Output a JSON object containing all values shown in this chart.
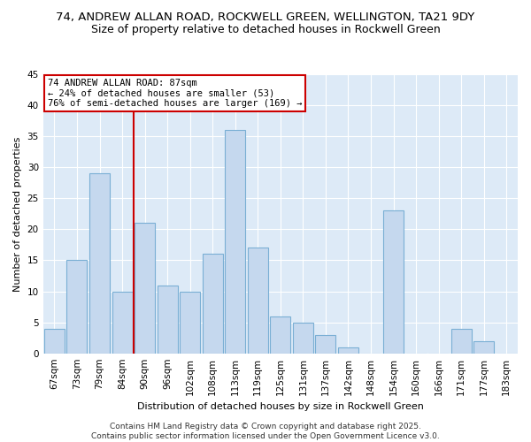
{
  "title1": "74, ANDREW ALLAN ROAD, ROCKWELL GREEN, WELLINGTON, TA21 9DY",
  "title2": "Size of property relative to detached houses in Rockwell Green",
  "xlabel": "Distribution of detached houses by size in Rockwell Green",
  "ylabel": "Number of detached properties",
  "categories": [
    "67sqm",
    "73sqm",
    "79sqm",
    "84sqm",
    "90sqm",
    "96sqm",
    "102sqm",
    "108sqm",
    "113sqm",
    "119sqm",
    "125sqm",
    "131sqm",
    "137sqm",
    "142sqm",
    "148sqm",
    "154sqm",
    "160sqm",
    "166sqm",
    "171sqm",
    "177sqm",
    "183sqm"
  ],
  "values": [
    4,
    15,
    29,
    10,
    21,
    11,
    10,
    16,
    36,
    17,
    6,
    5,
    3,
    1,
    0,
    23,
    0,
    0,
    4,
    2,
    0
  ],
  "bar_color": "#c5d8ee",
  "bar_edge_color": "#7aafd4",
  "background_color": "#ddeaf7",
  "figure_color": "#ffffff",
  "grid_color": "#ffffff",
  "vline_color": "#cc0000",
  "vline_x_index": 3,
  "annotation_text": "74 ANDREW ALLAN ROAD: 87sqm\n← 24% of detached houses are smaller (53)\n76% of semi-detached houses are larger (169) →",
  "annotation_box_edge_color": "#cc0000",
  "footer": "Contains HM Land Registry data © Crown copyright and database right 2025.\nContains public sector information licensed under the Open Government Licence v3.0.",
  "ylim": [
    0,
    45
  ],
  "yticks": [
    0,
    5,
    10,
    15,
    20,
    25,
    30,
    35,
    40,
    45
  ],
  "title1_fontsize": 9.5,
  "title2_fontsize": 9,
  "axis_label_fontsize": 8,
  "tick_fontsize": 7.5,
  "annotation_fontsize": 7.5,
  "footer_fontsize": 6.5
}
